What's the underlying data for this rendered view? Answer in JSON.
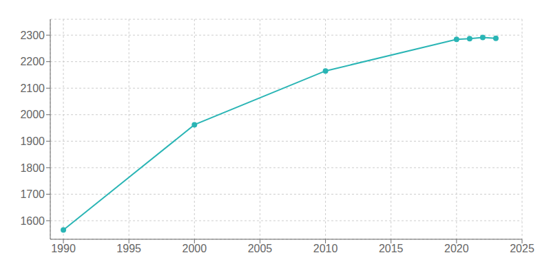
{
  "chart_data": {
    "type": "line",
    "x": [
      1990,
      2000,
      2010,
      2020,
      2021,
      2022,
      2023
    ],
    "values": [
      1565,
      1962,
      2165,
      2284,
      2287,
      2291,
      2288
    ],
    "color": "#2ab5b5",
    "marker": "circle",
    "grid": true,
    "xlim": [
      1989,
      2025
    ],
    "ylim": [
      1530,
      2360
    ],
    "xticks": [
      1990,
      1995,
      2000,
      2005,
      2010,
      2015,
      2020,
      2025
    ],
    "yticks": [
      1600,
      1700,
      1800,
      1900,
      2000,
      2100,
      2200,
      2300
    ]
  }
}
